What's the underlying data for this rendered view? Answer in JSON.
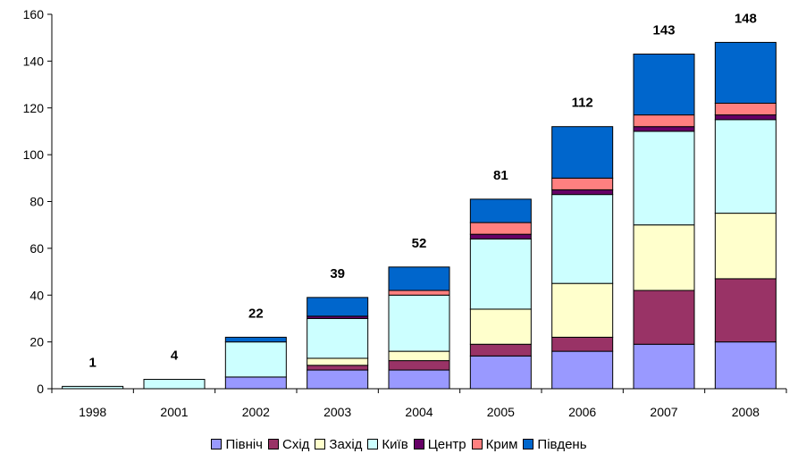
{
  "chart_data": {
    "type": "bar",
    "stacked": true,
    "categories": [
      "1998",
      "2001",
      "2002",
      "2003",
      "2004",
      "2005",
      "2006",
      "2007",
      "2008"
    ],
    "totals": [
      1,
      4,
      22,
      39,
      52,
      81,
      112,
      143,
      148
    ],
    "series": [
      {
        "name": "Північ",
        "color": "#9999ff",
        "values": [
          0,
          0,
          5,
          8,
          8,
          14,
          16,
          19,
          20
        ]
      },
      {
        "name": "Схід",
        "color": "#993366",
        "values": [
          0,
          0,
          0,
          2,
          4,
          5,
          6,
          23,
          27
        ]
      },
      {
        "name": "Захід",
        "color": "#ffffcc",
        "values": [
          0,
          0,
          0,
          3,
          4,
          15,
          23,
          28,
          28
        ]
      },
      {
        "name": "Київ",
        "color": "#ccffff",
        "values": [
          1,
          4,
          15,
          17,
          24,
          30,
          38,
          40,
          40
        ]
      },
      {
        "name": "Центр",
        "color": "#660066",
        "values": [
          0,
          0,
          0,
          1,
          0,
          2,
          2,
          2,
          2
        ]
      },
      {
        "name": "Крим",
        "color": "#ff8080",
        "values": [
          0,
          0,
          0,
          0,
          2,
          5,
          5,
          5,
          5
        ]
      },
      {
        "name": "Південь",
        "color": "#0066cc",
        "values": [
          0,
          0,
          2,
          8,
          10,
          10,
          22,
          26,
          26
        ]
      }
    ],
    "ylim": [
      0,
      160
    ],
    "yticks": [
      "0",
      "20",
      "40",
      "60",
      "80",
      "100",
      "120",
      "140",
      "160"
    ],
    "grid": false,
    "legend": "bottom"
  }
}
